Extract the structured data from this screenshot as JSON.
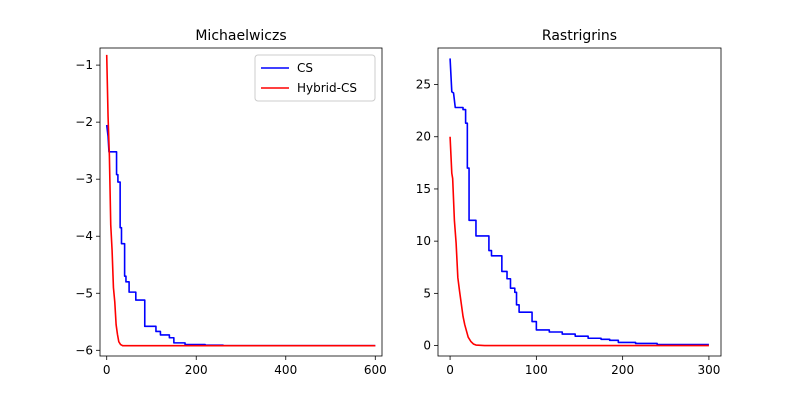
{
  "chart_data": [
    {
      "type": "line",
      "title": "Michaelwiczs",
      "xlabel": "",
      "ylabel": "",
      "xlim": [
        -15,
        615
      ],
      "ylim": [
        -6.1,
        -0.7
      ],
      "xticks": [
        0,
        200,
        400,
        600
      ],
      "yticks": [
        -6,
        -5,
        -4,
        -3,
        -2,
        -1
      ],
      "xtick_labels": [
        "0",
        "200",
        "400",
        "600"
      ],
      "ytick_labels": [
        "−6",
        "−5",
        "−4",
        "−3",
        "−2",
        "−1"
      ],
      "grid": false,
      "legend": {
        "placement": "top-right",
        "entries": [
          "CS",
          "Hybrid-CS"
        ]
      },
      "series": [
        {
          "name": "CS",
          "color": "#0000ff",
          "points": [
            [
              0,
              -2.05
            ],
            [
              3,
              -2.25
            ],
            [
              5,
              -2.52
            ],
            [
              22,
              -2.52
            ],
            [
              22,
              -2.92
            ],
            [
              25,
              -2.92
            ],
            [
              25,
              -3.05
            ],
            [
              30,
              -3.05
            ],
            [
              30,
              -3.85
            ],
            [
              33,
              -3.85
            ],
            [
              33,
              -4.13
            ],
            [
              40,
              -4.13
            ],
            [
              40,
              -4.7
            ],
            [
              43,
              -4.7
            ],
            [
              43,
              -4.8
            ],
            [
              50,
              -4.8
            ],
            [
              50,
              -4.98
            ],
            [
              65,
              -4.98
            ],
            [
              65,
              -5.12
            ],
            [
              85,
              -5.12
            ],
            [
              85,
              -5.58
            ],
            [
              110,
              -5.58
            ],
            [
              110,
              -5.67
            ],
            [
              120,
              -5.67
            ],
            [
              120,
              -5.73
            ],
            [
              140,
              -5.73
            ],
            [
              140,
              -5.78
            ],
            [
              150,
              -5.78
            ],
            [
              150,
              -5.87
            ],
            [
              175,
              -5.87
            ],
            [
              175,
              -5.9
            ],
            [
              220,
              -5.9
            ],
            [
              220,
              -5.91
            ],
            [
              260,
              -5.91
            ],
            [
              260,
              -5.92
            ],
            [
              600,
              -5.92
            ]
          ]
        },
        {
          "name": "Hybrid-CS",
          "color": "#ff0000",
          "points": [
            [
              0,
              -0.82
            ],
            [
              3,
              -1.9
            ],
            [
              6,
              -2.6
            ],
            [
              9,
              -3.8
            ],
            [
              12,
              -4.25
            ],
            [
              15,
              -4.9
            ],
            [
              18,
              -5.15
            ],
            [
              21,
              -5.55
            ],
            [
              24,
              -5.72
            ],
            [
              27,
              -5.85
            ],
            [
              31,
              -5.9
            ],
            [
              36,
              -5.92
            ],
            [
              45,
              -5.92
            ],
            [
              600,
              -5.92
            ]
          ]
        }
      ]
    },
    {
      "type": "line",
      "title": "Rastrigrins",
      "xlabel": "",
      "ylabel": "",
      "xlim": [
        -14,
        314
      ],
      "ylim": [
        -1,
        28.5
      ],
      "xticks": [
        0,
        100,
        200,
        300
      ],
      "yticks": [
        0,
        5,
        10,
        15,
        20,
        25
      ],
      "xtick_labels": [
        "0",
        "100",
        "200",
        "300"
      ],
      "ytick_labels": [
        "0",
        "5",
        "10",
        "15",
        "20",
        "25"
      ],
      "grid": false,
      "legend": null,
      "series": [
        {
          "name": "CS",
          "color": "#0000ff",
          "points": [
            [
              0,
              27.5
            ],
            [
              2,
              24.3
            ],
            [
              4,
              24.2
            ],
            [
              6,
              22.8
            ],
            [
              15,
              22.8
            ],
            [
              15,
              22.6
            ],
            [
              18,
              22.6
            ],
            [
              18,
              21.3
            ],
            [
              20,
              21.3
            ],
            [
              20,
              17
            ],
            [
              22,
              17
            ],
            [
              22,
              12
            ],
            [
              30,
              12
            ],
            [
              30,
              10.5
            ],
            [
              45,
              10.5
            ],
            [
              45,
              9.1
            ],
            [
              48,
              9.1
            ],
            [
              48,
              8.6
            ],
            [
              60,
              8.6
            ],
            [
              60,
              7.1
            ],
            [
              66,
              7.1
            ],
            [
              66,
              6.4
            ],
            [
              70,
              6.4
            ],
            [
              70,
              5.5
            ],
            [
              75,
              5.5
            ],
            [
              75,
              5.1
            ],
            [
              77,
              5.1
            ],
            [
              77,
              3.9
            ],
            [
              80,
              3.9
            ],
            [
              80,
              3.2
            ],
            [
              95,
              3.2
            ],
            [
              95,
              2.3
            ],
            [
              100,
              2.3
            ],
            [
              100,
              1.5
            ],
            [
              115,
              1.5
            ],
            [
              115,
              1.3
            ],
            [
              130,
              1.3
            ],
            [
              130,
              1.1
            ],
            [
              145,
              1.1
            ],
            [
              145,
              0.9
            ],
            [
              160,
              0.9
            ],
            [
              160,
              0.7
            ],
            [
              175,
              0.7
            ],
            [
              175,
              0.6
            ],
            [
              185,
              0.6
            ],
            [
              185,
              0.5
            ],
            [
              195,
              0.5
            ],
            [
              195,
              0.3
            ],
            [
              215,
              0.3
            ],
            [
              215,
              0.2
            ],
            [
              240,
              0.2
            ],
            [
              240,
              0.1
            ],
            [
              300,
              0.1
            ]
          ]
        },
        {
          "name": "Hybrid-CS",
          "color": "#ff0000",
          "points": [
            [
              0,
              20
            ],
            [
              2,
              16.5
            ],
            [
              3,
              16
            ],
            [
              5,
              12
            ],
            [
              7,
              9.8
            ],
            [
              9,
              6.5
            ],
            [
              11,
              5.2
            ],
            [
              13,
              4
            ],
            [
              15,
              2.8
            ],
            [
              17,
              2
            ],
            [
              19,
              1.4
            ],
            [
              21,
              0.8
            ],
            [
              24,
              0.4
            ],
            [
              27,
              0.15
            ],
            [
              30,
              0.05
            ],
            [
              40,
              0
            ],
            [
              300,
              0
            ]
          ]
        }
      ]
    }
  ]
}
